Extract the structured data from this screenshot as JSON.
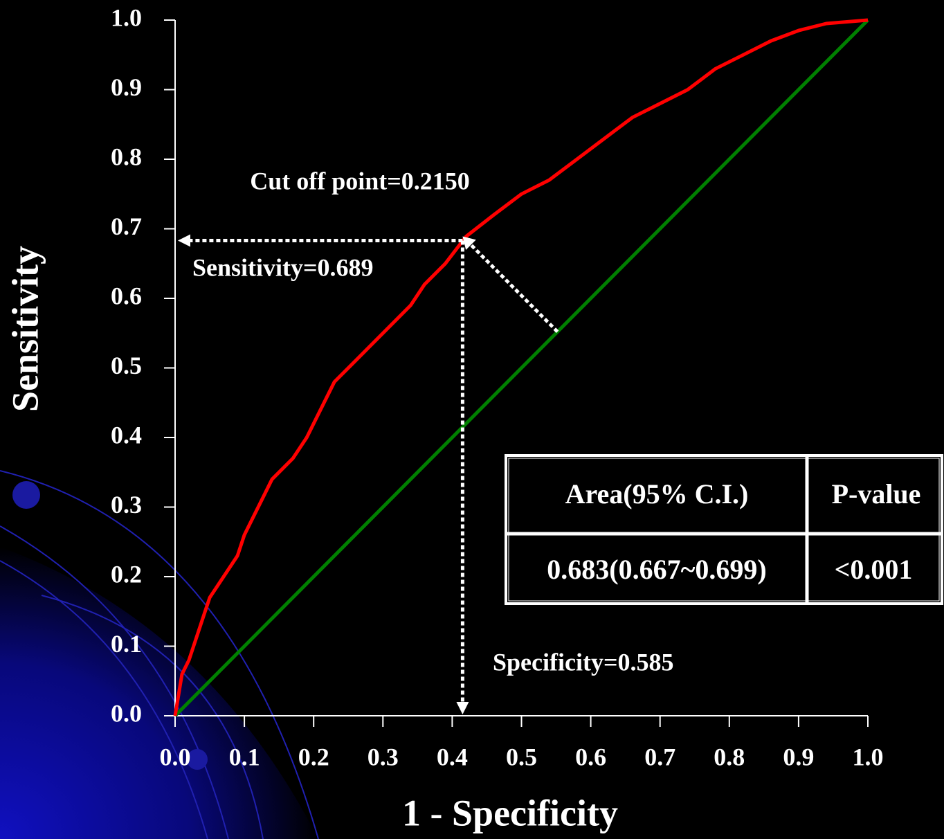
{
  "chart_data": {
    "type": "line",
    "x_label": "1 - Specificity",
    "y_label": "Sensitivity",
    "xlim": [
      0,
      1
    ],
    "ylim": [
      0,
      1
    ],
    "xticks": [
      {
        "value": 0,
        "label": "0.0"
      },
      0.1,
      0.2,
      0.3,
      0.4,
      0.5,
      0.6,
      0.7,
      0.8,
      0.9,
      {
        "value": 1,
        "label": "1.0"
      }
    ],
    "yticks": [
      {
        "value": 0,
        "label": "0.0"
      },
      0.1,
      0.2,
      0.3,
      0.4,
      0.5,
      0.6,
      0.7,
      0.8,
      0.9,
      {
        "value": 1,
        "label": "1.0"
      }
    ],
    "grid": false,
    "series": [
      {
        "color": "#ff0000",
        "x": [
          0,
          0.01,
          0.02,
          0.03,
          0.04,
          0.05,
          0.07,
          0.09,
          0.1,
          0.12,
          0.14,
          0.17,
          0.19,
          0.21,
          0.23,
          0.26,
          0.28,
          0.31,
          0.34,
          0.36,
          0.39,
          0.42,
          0.46,
          0.5,
          0.54,
          0.58,
          0.62,
          0.66,
          0.7,
          0.74,
          0.78,
          0.82,
          0.86,
          0.9,
          0.94,
          1.0
        ],
        "values": [
          0,
          0.06,
          0.08,
          0.11,
          0.14,
          0.17,
          0.2,
          0.23,
          0.26,
          0.3,
          0.34,
          0.37,
          0.4,
          0.44,
          0.48,
          0.51,
          0.53,
          0.56,
          0.59,
          0.62,
          0.65,
          0.689,
          0.72,
          0.75,
          0.77,
          0.8,
          0.83,
          0.86,
          0.88,
          0.9,
          0.93,
          0.95,
          0.97,
          0.985,
          0.995,
          1.0
        ]
      },
      {
        "color": "#008000",
        "x": [
          0,
          1
        ],
        "values": [
          0,
          1
        ]
      }
    ],
    "cutoff_point": {
      "x": 0.415,
      "y": 0.689
    },
    "annotations": [
      "Cut off point=0.2150",
      "Sensitivity=0.689",
      "Specificity=0.585"
    ],
    "table": {
      "header": [
        "Area(95% C.I.)",
        "P-value"
      ],
      "rows": [
        [
          "0.683(0.667~0.699)",
          "<0.001"
        ]
      ]
    }
  }
}
